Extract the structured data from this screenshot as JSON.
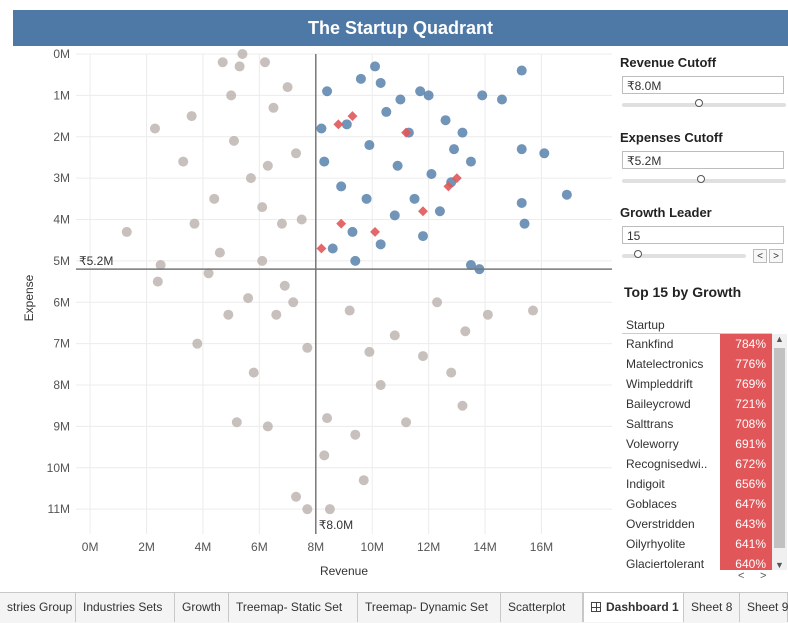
{
  "header": {
    "title": "The Startup Quadrant"
  },
  "controls": {
    "revenue_cutoff": {
      "label": "Revenue Cutoff",
      "value": "₹8.0M",
      "fraction": 0.47
    },
    "expenses_cutoff": {
      "label": "Expenses Cutoff",
      "value": "₹5.2M",
      "fraction": 0.48
    },
    "growth_leader": {
      "label": "Growth Leader",
      "value": "15",
      "fraction": 0.1,
      "prev": "<",
      "next": ">"
    }
  },
  "top_list": {
    "title": "Top 15 by Growth",
    "column": "Startup",
    "items": [
      {
        "name": "Rankfind",
        "pct": "784%"
      },
      {
        "name": "Matelectronics",
        "pct": "776%"
      },
      {
        "name": "Wimpleddrift",
        "pct": "769%"
      },
      {
        "name": "Baileycrowd",
        "pct": "721%"
      },
      {
        "name": "Salttrans",
        "pct": "708%"
      },
      {
        "name": "Voleworry",
        "pct": "691%"
      },
      {
        "name": "Recognisedwi..",
        "pct": "672%"
      },
      {
        "name": "Indigoit",
        "pct": "656%"
      },
      {
        "name": "Goblaces",
        "pct": "647%"
      },
      {
        "name": "Overstridden",
        "pct": "643%"
      },
      {
        "name": "Oilyrhyolite",
        "pct": "641%"
      },
      {
        "name": "Glaciertolerant",
        "pct": "640%"
      }
    ]
  },
  "tabs": [
    "stries Group",
    "Industries Sets",
    "Growth",
    "Treemap- Static Set",
    "Treemap- Dynamic Set",
    "Scatterplot",
    "Dashboard 1",
    "Sheet 8",
    "Sheet 9"
  ],
  "active_tab": "Dashboard 1",
  "chart_data": {
    "type": "scatter",
    "xlabel": "Revenue",
    "ylabel": "Expense",
    "xlim": [
      -0.5,
      18.5
    ],
    "ylim": [
      0,
      11.6
    ],
    "y_inverted": true,
    "xticks": [
      {
        "v": 0,
        "label": "0M"
      },
      {
        "v": 2,
        "label": "2M"
      },
      {
        "v": 4,
        "label": "4M"
      },
      {
        "v": 6,
        "label": "6M"
      },
      {
        "v": 8,
        "label": "8M"
      },
      {
        "v": 10,
        "label": "10M"
      },
      {
        "v": 12,
        "label": "12M"
      },
      {
        "v": 14,
        "label": "14M"
      },
      {
        "v": 16,
        "label": "16M"
      }
    ],
    "yticks": [
      {
        "v": 0,
        "label": "0M"
      },
      {
        "v": 1,
        "label": "1M"
      },
      {
        "v": 2,
        "label": "2M"
      },
      {
        "v": 3,
        "label": "3M"
      },
      {
        "v": 4,
        "label": "4M"
      },
      {
        "v": 5,
        "label": "5M"
      },
      {
        "v": 6,
        "label": "6M"
      },
      {
        "v": 7,
        "label": "7M"
      },
      {
        "v": 8,
        "label": "8M"
      },
      {
        "v": 9,
        "label": "9M"
      },
      {
        "v": 10,
        "label": "10M"
      },
      {
        "v": 11,
        "label": "11M"
      }
    ],
    "grid": true,
    "ref_lines": {
      "x": {
        "value": 8.0,
        "label": "₹8.0M"
      },
      "y": {
        "value": 5.2,
        "label": "₹5.2M"
      }
    },
    "colors": {
      "leader": "#4e79a7",
      "other": "#bab0ac",
      "top": "#e15759"
    },
    "series": [
      {
        "role": "leader",
        "points": [
          [
            15.3,
            0.4
          ],
          [
            13.9,
            1.0
          ],
          [
            14.6,
            1.1
          ],
          [
            15.3,
            2.3
          ],
          [
            16.1,
            2.4
          ],
          [
            16.9,
            3.4
          ],
          [
            15.3,
            3.6
          ],
          [
            15.4,
            4.1
          ],
          [
            13.5,
            5.1
          ],
          [
            13.8,
            5.2
          ],
          [
            8.4,
            0.9
          ],
          [
            9.6,
            0.6
          ],
          [
            10.3,
            0.7
          ],
          [
            11.0,
            1.1
          ],
          [
            12.0,
            1.0
          ],
          [
            12.6,
            1.6
          ],
          [
            13.2,
            1.9
          ],
          [
            13.5,
            2.6
          ],
          [
            12.8,
            3.1
          ],
          [
            12.4,
            3.8
          ],
          [
            11.8,
            4.4
          ],
          [
            9.1,
            1.7
          ],
          [
            8.9,
            3.2
          ],
          [
            9.3,
            4.3
          ],
          [
            10.3,
            4.6
          ],
          [
            11.5,
            3.5
          ],
          [
            8.3,
            2.6
          ],
          [
            8.6,
            4.7
          ],
          [
            9.9,
            2.2
          ],
          [
            10.9,
            2.7
          ],
          [
            12.1,
            2.9
          ],
          [
            11.3,
            1.9
          ],
          [
            10.5,
            1.4
          ],
          [
            9.4,
            5.0
          ],
          [
            8.2,
            1.8
          ],
          [
            10.8,
            3.9
          ],
          [
            9.8,
            3.5
          ],
          [
            12.9,
            2.3
          ],
          [
            11.7,
            0.9
          ],
          [
            10.1,
            0.3
          ]
        ]
      },
      {
        "role": "other",
        "points": [
          [
            5.4,
            0.0
          ],
          [
            6.2,
            0.2
          ],
          [
            5.3,
            0.3
          ],
          [
            4.7,
            0.2
          ],
          [
            3.6,
            1.5
          ],
          [
            2.3,
            1.8
          ],
          [
            3.3,
            2.6
          ],
          [
            3.7,
            4.1
          ],
          [
            1.3,
            4.3
          ],
          [
            2.5,
            5.1
          ],
          [
            2.4,
            5.5
          ],
          [
            5.1,
            2.1
          ],
          [
            5.7,
            3.0
          ],
          [
            6.3,
            2.7
          ],
          [
            4.4,
            3.5
          ],
          [
            6.8,
            4.1
          ],
          [
            7.2,
            6.0
          ],
          [
            6.9,
            5.6
          ],
          [
            9.2,
            6.2
          ],
          [
            10.8,
            6.8
          ],
          [
            11.8,
            7.3
          ],
          [
            13.3,
            6.7
          ],
          [
            14.1,
            6.3
          ],
          [
            15.7,
            6.2
          ],
          [
            13.2,
            8.5
          ],
          [
            10.3,
            8.0
          ],
          [
            9.4,
            9.2
          ],
          [
            8.3,
            9.7
          ],
          [
            7.7,
            11.0
          ],
          [
            8.5,
            11.0
          ],
          [
            7.3,
            10.7
          ],
          [
            5.2,
            8.9
          ],
          [
            6.3,
            9.0
          ],
          [
            5.8,
            7.7
          ],
          [
            4.9,
            6.3
          ],
          [
            3.8,
            7.0
          ],
          [
            6.6,
            6.3
          ],
          [
            7.7,
            7.1
          ],
          [
            8.4,
            8.8
          ],
          [
            9.9,
            7.2
          ],
          [
            12.3,
            6.0
          ],
          [
            12.8,
            7.7
          ],
          [
            11.2,
            8.9
          ],
          [
            9.7,
            10.3
          ],
          [
            6.1,
            5.0
          ],
          [
            5.6,
            5.9
          ],
          [
            4.6,
            4.8
          ],
          [
            7.5,
            4.0
          ],
          [
            7.3,
            2.4
          ],
          [
            6.5,
            1.3
          ],
          [
            5.0,
            1.0
          ],
          [
            7.0,
            0.8
          ],
          [
            6.1,
            3.7
          ],
          [
            4.2,
            5.3
          ]
        ]
      },
      {
        "role": "top",
        "points": [
          [
            8.8,
            1.7
          ],
          [
            9.3,
            1.5
          ],
          [
            11.2,
            1.9
          ],
          [
            12.7,
            3.2
          ],
          [
            13.0,
            3.0
          ],
          [
            11.8,
            3.8
          ],
          [
            8.9,
            4.1
          ],
          [
            10.1,
            4.3
          ],
          [
            8.2,
            4.7
          ]
        ]
      }
    ]
  }
}
